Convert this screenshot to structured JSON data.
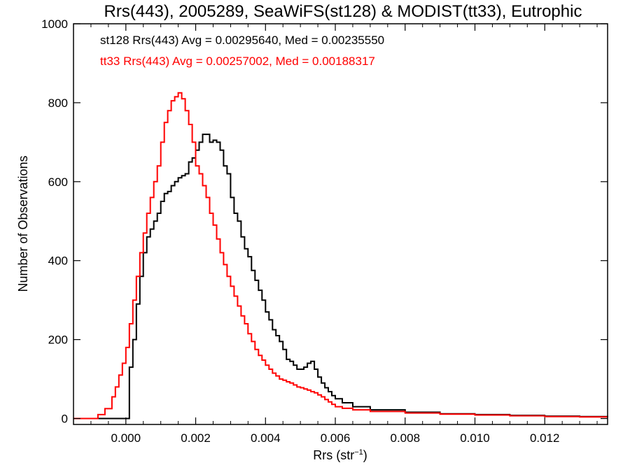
{
  "chart_data": {
    "type": "line",
    "title": "Rrs(443), 2005289, SeaWiFS(st128) & MODIST(tt33), Eutrophic",
    "xlabel_base": "Rrs (str",
    "xlabel_sup": "−1",
    "xlabel_close": ")",
    "ylabel": "Number of Observations",
    "xlim": [
      -0.0015,
      0.0138
    ],
    "ylim": [
      -15,
      1000
    ],
    "x_ticks": [
      {
        "value": 0.0,
        "label": "0.000"
      },
      {
        "value": 0.002,
        "label": "0.002"
      },
      {
        "value": 0.004,
        "label": "0.004"
      },
      {
        "value": 0.006,
        "label": "0.006"
      },
      {
        "value": 0.008,
        "label": "0.008"
      },
      {
        "value": 0.01,
        "label": "0.010"
      },
      {
        "value": 0.012,
        "label": "0.012"
      }
    ],
    "y_ticks": [
      {
        "value": 0,
        "label": "0"
      },
      {
        "value": 200,
        "label": "200"
      },
      {
        "value": 400,
        "label": "400"
      },
      {
        "value": 600,
        "label": "600"
      },
      {
        "value": 800,
        "label": "800"
      },
      {
        "value": 1000,
        "label": "1000"
      }
    ],
    "annotations": [
      {
        "text": "st128 Rrs(443) Avg = 0.00295640, Med = 0.00235550",
        "color": "#000000"
      },
      {
        "text": "tt33 Rrs(443) Avg = 0.00257002, Med = 0.00188317",
        "color": "#ff0000"
      }
    ],
    "series": [
      {
        "color": "#000000",
        "points": [
          [
            -0.0015,
            0
          ],
          [
            -0.0001,
            0
          ],
          [
            0.0,
            0
          ],
          [
            0.0001,
            130
          ],
          [
            0.0002,
            200
          ],
          [
            0.0003,
            290
          ],
          [
            0.0004,
            360
          ],
          [
            0.0005,
            420
          ],
          [
            0.0006,
            460
          ],
          [
            0.0007,
            480
          ],
          [
            0.0008,
            500
          ],
          [
            0.0009,
            520
          ],
          [
            0.001,
            550
          ],
          [
            0.0011,
            570
          ],
          [
            0.0012,
            575
          ],
          [
            0.0013,
            590
          ],
          [
            0.0014,
            600
          ],
          [
            0.0015,
            610
          ],
          [
            0.0016,
            615
          ],
          [
            0.0017,
            620
          ],
          [
            0.0018,
            650
          ],
          [
            0.0019,
            660
          ],
          [
            0.002,
            680
          ],
          [
            0.0021,
            700
          ],
          [
            0.0022,
            720
          ],
          [
            0.0023,
            720
          ],
          [
            0.0024,
            700
          ],
          [
            0.0025,
            705
          ],
          [
            0.0026,
            700
          ],
          [
            0.0027,
            680
          ],
          [
            0.0028,
            640
          ],
          [
            0.0029,
            620
          ],
          [
            0.003,
            560
          ],
          [
            0.0031,
            520
          ],
          [
            0.0032,
            500
          ],
          [
            0.0033,
            460
          ],
          [
            0.0034,
            430
          ],
          [
            0.0035,
            410
          ],
          [
            0.0036,
            375
          ],
          [
            0.0037,
            350
          ],
          [
            0.0038,
            325
          ],
          [
            0.0039,
            300
          ],
          [
            0.004,
            270
          ],
          [
            0.0041,
            250
          ],
          [
            0.0042,
            225
          ],
          [
            0.0043,
            210
          ],
          [
            0.0044,
            195
          ],
          [
            0.0045,
            175
          ],
          [
            0.0046,
            150
          ],
          [
            0.0047,
            145
          ],
          [
            0.0048,
            135
          ],
          [
            0.0049,
            125
          ],
          [
            0.005,
            125
          ],
          [
            0.0051,
            130
          ],
          [
            0.0052,
            140
          ],
          [
            0.0053,
            145
          ],
          [
            0.0054,
            125
          ],
          [
            0.0055,
            105
          ],
          [
            0.0056,
            90
          ],
          [
            0.0057,
            78
          ],
          [
            0.0058,
            68
          ],
          [
            0.0059,
            58
          ],
          [
            0.006,
            50
          ],
          [
            0.0062,
            40
          ],
          [
            0.0065,
            30
          ],
          [
            0.007,
            22
          ],
          [
            0.008,
            16
          ],
          [
            0.009,
            12
          ],
          [
            0.01,
            10
          ],
          [
            0.011,
            8
          ],
          [
            0.012,
            6
          ],
          [
            0.013,
            5
          ],
          [
            0.0138,
            4
          ]
        ]
      },
      {
        "color": "#ff0000",
        "points": [
          [
            -0.0015,
            0
          ],
          [
            -0.001,
            0
          ],
          [
            -0.0008,
            10
          ],
          [
            -0.0006,
            25
          ],
          [
            -0.0004,
            55
          ],
          [
            -0.0003,
            80
          ],
          [
            -0.0002,
            110
          ],
          [
            -0.0001,
            140
          ],
          [
            0.0,
            180
          ],
          [
            0.0001,
            240
          ],
          [
            0.0002,
            300
          ],
          [
            0.0003,
            360
          ],
          [
            0.0004,
            420
          ],
          [
            0.0005,
            470
          ],
          [
            0.0006,
            520
          ],
          [
            0.0007,
            560
          ],
          [
            0.0008,
            600
          ],
          [
            0.0009,
            640
          ],
          [
            0.001,
            700
          ],
          [
            0.0011,
            750
          ],
          [
            0.0012,
            780
          ],
          [
            0.0013,
            805
          ],
          [
            0.0014,
            815
          ],
          [
            0.0015,
            825
          ],
          [
            0.0016,
            810
          ],
          [
            0.0017,
            780
          ],
          [
            0.0018,
            745
          ],
          [
            0.0019,
            700
          ],
          [
            0.002,
            640
          ],
          [
            0.0021,
            620
          ],
          [
            0.0022,
            590
          ],
          [
            0.0023,
            560
          ],
          [
            0.0024,
            520
          ],
          [
            0.0025,
            490
          ],
          [
            0.0026,
            455
          ],
          [
            0.0027,
            420
          ],
          [
            0.0028,
            390
          ],
          [
            0.0029,
            360
          ],
          [
            0.003,
            335
          ],
          [
            0.0031,
            310
          ],
          [
            0.0032,
            285
          ],
          [
            0.0033,
            260
          ],
          [
            0.0034,
            240
          ],
          [
            0.0035,
            215
          ],
          [
            0.0036,
            195
          ],
          [
            0.0037,
            175
          ],
          [
            0.0038,
            160
          ],
          [
            0.0039,
            148
          ],
          [
            0.004,
            135
          ],
          [
            0.0041,
            125
          ],
          [
            0.0042,
            115
          ],
          [
            0.0043,
            108
          ],
          [
            0.0044,
            100
          ],
          [
            0.0045,
            97
          ],
          [
            0.0046,
            93
          ],
          [
            0.0047,
            90
          ],
          [
            0.0048,
            85
          ],
          [
            0.0049,
            80
          ],
          [
            0.005,
            78
          ],
          [
            0.0051,
            75
          ],
          [
            0.0052,
            72
          ],
          [
            0.0053,
            68
          ],
          [
            0.0054,
            65
          ],
          [
            0.0055,
            60
          ],
          [
            0.0056,
            55
          ],
          [
            0.0057,
            48
          ],
          [
            0.0058,
            42
          ],
          [
            0.0059,
            36
          ],
          [
            0.006,
            30
          ],
          [
            0.0062,
            26
          ],
          [
            0.0065,
            22
          ],
          [
            0.007,
            18
          ],
          [
            0.008,
            14
          ],
          [
            0.009,
            11
          ],
          [
            0.01,
            9
          ],
          [
            0.011,
            7
          ],
          [
            0.012,
            5
          ],
          [
            0.013,
            4
          ],
          [
            0.0138,
            3
          ]
        ]
      }
    ]
  }
}
